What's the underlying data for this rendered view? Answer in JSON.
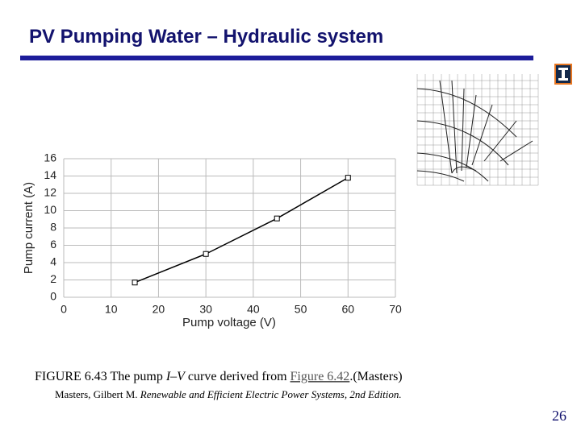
{
  "slide": {
    "title": "PV Pumping Water – Hydraulic system",
    "caption": [
      "FIGURE 6.43 The pump ",
      "I–V",
      " curve derived from ",
      "Figure 6.42",
      ".(Masters)"
    ],
    "reference": [
      "Masters, Gilbert M. ",
      "Renewable and Efficient Electric Power Systems, 2nd Edition."
    ],
    "page_number": 26
  },
  "chart_data": {
    "type": "line",
    "x_label": "Pump voltage (V)",
    "y_label": "Pump current (A)",
    "x": [
      15,
      30,
      45,
      60
    ],
    "values": [
      1.7,
      5.0,
      9.1,
      13.8
    ],
    "color": "#000000",
    "marker": "square",
    "xlim": [
      0,
      70
    ],
    "xticks": [
      0,
      10,
      20,
      30,
      40,
      50,
      60,
      70
    ],
    "ylim": [
      0,
      16
    ],
    "yticks": [
      0,
      2,
      4,
      6,
      8,
      10,
      12,
      14,
      16
    ],
    "grid": true
  }
}
